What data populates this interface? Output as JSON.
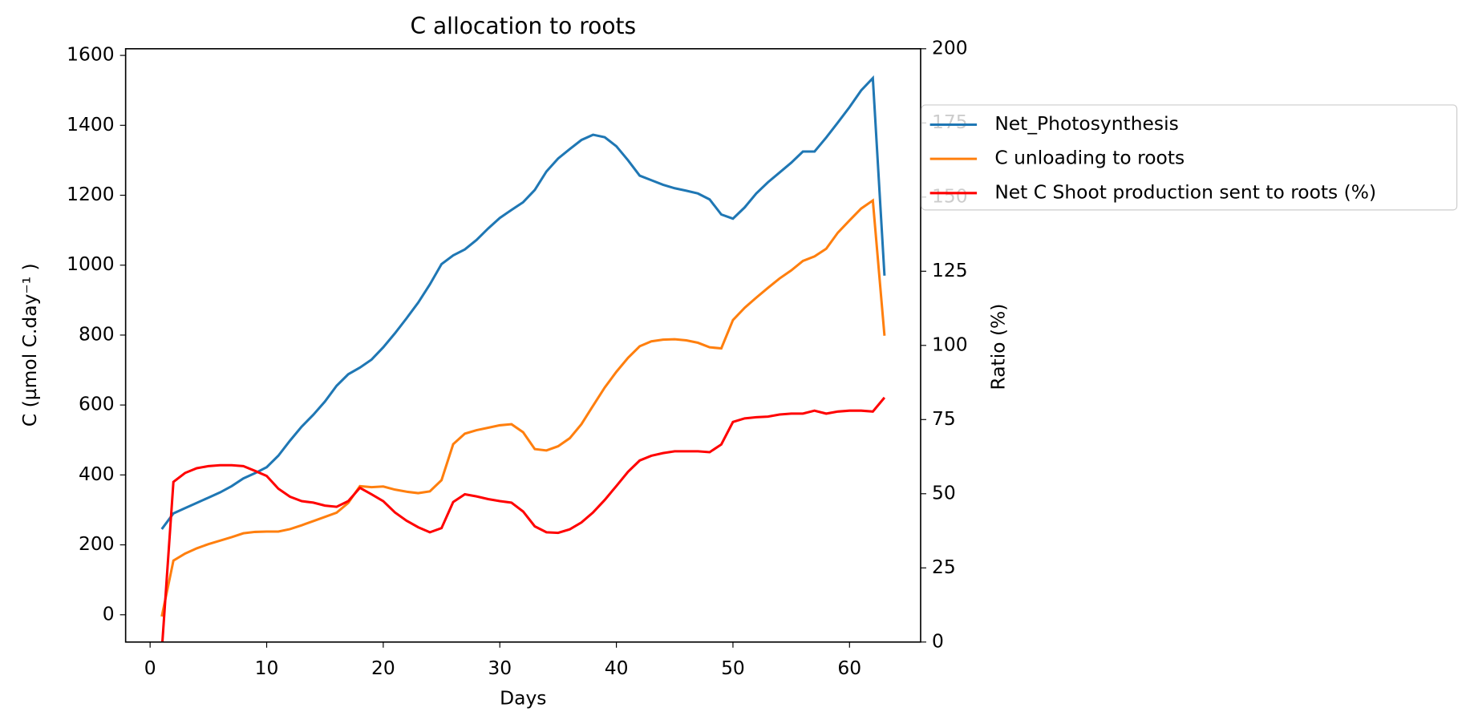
{
  "chart_data": {
    "type": "line",
    "title": "C allocation to roots",
    "xlabel": "Days",
    "ylabel": "C (µmol C.day⁻¹ )",
    "y2label": "Ratio (%)",
    "x": [
      1,
      2,
      3,
      4,
      5,
      6,
      7,
      8,
      9,
      10,
      11,
      12,
      13,
      14,
      15,
      16,
      17,
      18,
      19,
      20,
      21,
      22,
      23,
      24,
      25,
      26,
      27,
      28,
      29,
      30,
      31,
      32,
      33,
      34,
      35,
      36,
      37,
      38,
      39,
      40,
      41,
      42,
      43,
      44,
      45,
      46,
      47,
      48,
      49,
      50,
      51,
      52,
      53,
      54,
      55,
      56,
      57,
      58,
      59,
      60,
      61,
      62,
      63
    ],
    "series": [
      {
        "name": "Net_Photosynthesis",
        "color": "#1f77b4",
        "values": [
          245,
          290,
          305,
          320,
          335,
          350,
          368,
          390,
          405,
          422,
          455,
          498,
          538,
          572,
          610,
          655,
          688,
          707,
          730,
          765,
          805,
          848,
          893,
          945,
          1003,
          1028,
          1045,
          1072,
          1105,
          1135,
          1158,
          1180,
          1215,
          1268,
          1305,
          1332,
          1358,
          1373,
          1366,
          1340,
          1300,
          1256,
          1243,
          1230,
          1220,
          1213,
          1205,
          1188,
          1145,
          1133,
          1165,
          1205,
          1237,
          1265,
          1293,
          1325,
          1325,
          1365,
          1408,
          1452,
          1500,
          1535,
          970
        ]
      },
      {
        "name": "C unloading to roots",
        "color": "#ff7f0e",
        "values": [
          -5,
          155,
          175,
          190,
          202,
          212,
          222,
          233,
          237,
          238,
          238,
          245,
          256,
          268,
          280,
          292,
          320,
          368,
          365,
          367,
          358,
          352,
          348,
          353,
          385,
          488,
          518,
          528,
          535,
          542,
          545,
          522,
          474,
          470,
          482,
          505,
          545,
          598,
          650,
          695,
          735,
          768,
          782,
          787,
          788,
          785,
          778,
          765,
          762,
          843,
          878,
          907,
          935,
          962,
          985,
          1012,
          1025,
          1047,
          1093,
          1128,
          1162,
          1185,
          798
        ]
      },
      {
        "name": "Net C Shoot production sent to roots (%)",
        "color": "#ff0000",
        "axis": "y2",
        "values": [
          -3,
          54,
          57,
          58.6,
          59.3,
          59.6,
          59.6,
          59.3,
          57.7,
          56,
          51.7,
          49,
          47.5,
          47,
          46,
          45.6,
          47.5,
          52,
          49.8,
          47.5,
          43.7,
          40.9,
          38.7,
          37,
          38.4,
          47.2,
          49.8,
          49.1,
          48.2,
          47.5,
          47,
          44,
          39,
          37,
          36.8,
          38,
          40.3,
          43.7,
          47.9,
          52.6,
          57.4,
          61.2,
          62.8,
          63.7,
          64.3,
          64.3,
          64.3,
          64,
          66.6,
          74.2,
          75.4,
          75.8,
          76,
          76.7,
          77,
          77,
          78,
          77,
          77.7,
          78,
          78,
          77.7,
          82.4
        ]
      }
    ],
    "xlim": [
      -2.1,
      66.1
    ],
    "xticks": [
      0,
      10,
      20,
      30,
      40,
      50,
      60
    ],
    "ylim": [
      -78,
      1619
    ],
    "yticks": [
      0,
      200,
      400,
      600,
      800,
      1000,
      1200,
      1400,
      1600
    ],
    "y2lim": [
      0,
      200
    ],
    "y2ticks": [
      0,
      25,
      50,
      75,
      100,
      125,
      150,
      175,
      200
    ],
    "grid": false,
    "legend": "right"
  }
}
